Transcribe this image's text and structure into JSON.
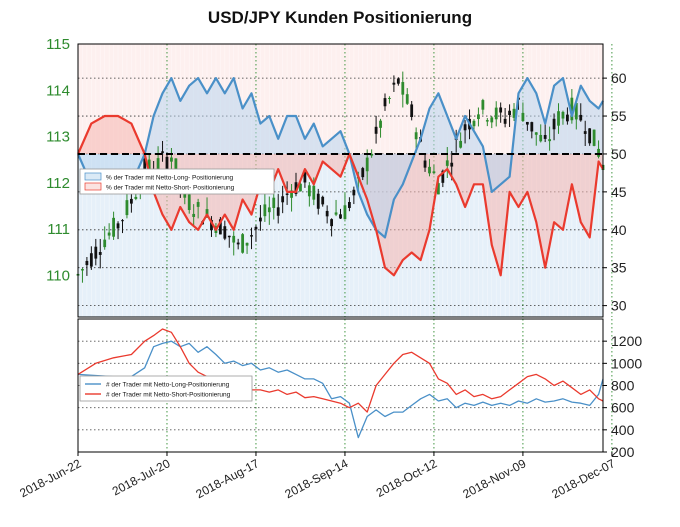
{
  "chart_data": [
    {
      "type": "candlestick+line",
      "title": "USD/JPY Kunden Positionierung",
      "left_axis": {
        "ticks": [
          110,
          111,
          112,
          113,
          114,
          115
        ],
        "ylim": [
          109.1,
          115.0
        ]
      },
      "right_axis": {
        "ticks": [
          30,
          35,
          40,
          45,
          50,
          55,
          60
        ],
        "ylim": [
          28.5,
          64.5
        ]
      },
      "x_tick_labels": [
        "2018-Jun-22",
        "2018-Jul-20",
        "2018-Aug-17",
        "2018-Sep-14",
        "2018-Oct-12",
        "2018-Nov-09",
        "2018-Dec-07"
      ],
      "reference_line": 50,
      "grid": true,
      "legend_position": "upper-left",
      "series": [
        {
          "name": "% der Trader mit Netto-Long- Positionierung",
          "color": "#4a90c8",
          "fill": "#dbeaf6"
        },
        {
          "name": "% der Trader mit Netto-Short- Positionierung",
          "color": "#ea3a2e",
          "fill": "#fbe3e1"
        }
      ],
      "price_anchors": [
        [
          0,
          110.0
        ],
        [
          3,
          110.4
        ],
        [
          6,
          110.8
        ],
        [
          9,
          111.1
        ],
        [
          12,
          111.6
        ],
        [
          15,
          112.3
        ],
        [
          18,
          112.4
        ],
        [
          21,
          112.6
        ],
        [
          24,
          111.7
        ],
        [
          27,
          111.4
        ],
        [
          30,
          111.2
        ],
        [
          33,
          111.0
        ],
        [
          36,
          110.6
        ],
        [
          39,
          110.9
        ],
        [
          42,
          111.3
        ],
        [
          45,
          111.5
        ],
        [
          48,
          111.9
        ],
        [
          51,
          112.0
        ],
        [
          54,
          111.6
        ],
        [
          57,
          111.3
        ],
        [
          60,
          111.4
        ],
        [
          63,
          111.9
        ],
        [
          66,
          112.7
        ],
        [
          69,
          113.6
        ],
        [
          72,
          114.2
        ],
        [
          75,
          113.5
        ],
        [
          78,
          112.5
        ],
        [
          81,
          112.0
        ],
        [
          84,
          112.6
        ],
        [
          87,
          113.2
        ],
        [
          90,
          113.6
        ],
        [
          93,
          113.5
        ],
        [
          96,
          113.4
        ],
        [
          99,
          113.7
        ],
        [
          102,
          113.2
        ],
        [
          105,
          112.8
        ],
        [
          108,
          113.4
        ],
        [
          111,
          113.6
        ],
        [
          114,
          113.3
        ],
        [
          117,
          112.7
        ],
        [
          118,
          112.4
        ]
      ],
      "long_pct": [
        [
          0,
          50
        ],
        [
          3,
          46
        ],
        [
          6,
          45
        ],
        [
          9,
          45
        ],
        [
          12,
          46
        ],
        [
          15,
          50
        ],
        [
          17,
          55
        ],
        [
          19,
          58
        ],
        [
          21,
          60
        ],
        [
          23,
          57
        ],
        [
          25,
          59
        ],
        [
          27,
          60
        ],
        [
          29,
          58
        ],
        [
          31,
          60
        ],
        [
          33,
          58
        ],
        [
          35,
          60
        ],
        [
          37,
          56
        ],
        [
          39,
          58
        ],
        [
          41,
          54
        ],
        [
          43,
          55
        ],
        [
          45,
          52
        ],
        [
          47,
          55
        ],
        [
          49,
          55
        ],
        [
          51,
          52
        ],
        [
          53,
          54
        ],
        [
          55,
          51
        ],
        [
          57,
          52
        ],
        [
          59,
          53
        ],
        [
          61,
          50
        ],
        [
          63,
          45
        ],
        [
          65,
          42
        ],
        [
          67,
          40
        ],
        [
          69,
          39
        ],
        [
          71,
          44
        ],
        [
          73,
          46
        ],
        [
          75,
          49
        ],
        [
          77,
          52
        ],
        [
          79,
          56
        ],
        [
          81,
          58
        ],
        [
          83,
          55
        ],
        [
          85,
          52
        ],
        [
          87,
          55
        ],
        [
          89,
          53
        ],
        [
          91,
          51
        ],
        [
          93,
          45
        ],
        [
          95,
          46
        ],
        [
          97,
          47
        ],
        [
          99,
          58
        ],
        [
          101,
          60
        ],
        [
          103,
          58
        ],
        [
          105,
          54
        ],
        [
          107,
          59
        ],
        [
          109,
          60
        ],
        [
          111,
          55
        ],
        [
          113,
          59
        ],
        [
          115,
          57
        ],
        [
          117,
          56
        ],
        [
          118,
          57
        ]
      ],
      "short_pct": [
        [
          0,
          50
        ],
        [
          3,
          54
        ],
        [
          6,
          55
        ],
        [
          9,
          55
        ],
        [
          12,
          54
        ],
        [
          15,
          50
        ],
        [
          17,
          45
        ],
        [
          19,
          42
        ],
        [
          21,
          40
        ],
        [
          23,
          43
        ],
        [
          25,
          41
        ],
        [
          27,
          40
        ],
        [
          29,
          42
        ],
        [
          31,
          40
        ],
        [
          33,
          42
        ],
        [
          35,
          40
        ],
        [
          37,
          44
        ],
        [
          39,
          42
        ],
        [
          41,
          46
        ],
        [
          43,
          45
        ],
        [
          45,
          48
        ],
        [
          47,
          45
        ],
        [
          49,
          45
        ],
        [
          51,
          48
        ],
        [
          53,
          46
        ],
        [
          55,
          49
        ],
        [
          57,
          48
        ],
        [
          59,
          47
        ],
        [
          61,
          50
        ],
        [
          63,
          47
        ],
        [
          65,
          44
        ],
        [
          67,
          40
        ],
        [
          69,
          35
        ],
        [
          71,
          34
        ],
        [
          73,
          36
        ],
        [
          75,
          37
        ],
        [
          77,
          36
        ],
        [
          79,
          40
        ],
        [
          81,
          47
        ],
        [
          83,
          48
        ],
        [
          85,
          46
        ],
        [
          87,
          43
        ],
        [
          89,
          46
        ],
        [
          91,
          46
        ],
        [
          93,
          38
        ],
        [
          95,
          34
        ],
        [
          97,
          45
        ],
        [
          99,
          43
        ],
        [
          101,
          45
        ],
        [
          103,
          41
        ],
        [
          105,
          35
        ],
        [
          107,
          41
        ],
        [
          109,
          40
        ],
        [
          111,
          46
        ],
        [
          113,
          41
        ],
        [
          115,
          39
        ],
        [
          117,
          49
        ],
        [
          118,
          48
        ]
      ]
    },
    {
      "type": "line",
      "y_ticks": [
        200,
        400,
        600,
        800,
        1000,
        1200
      ],
      "ylim": [
        200,
        1400
      ],
      "grid": true,
      "legend_position": "upper-left",
      "series": [
        {
          "name": "# der Trader mit Netto-Long-Positionierung",
          "color": "#4a90c8",
          "points": [
            [
              0,
              900
            ],
            [
              4,
              890
            ],
            [
              8,
              880
            ],
            [
              12,
              880
            ],
            [
              15,
              960
            ],
            [
              17,
              1150
            ],
            [
              19,
              1180
            ],
            [
              21,
              1200
            ],
            [
              23,
              1150
            ],
            [
              25,
              1180
            ],
            [
              27,
              1100
            ],
            [
              29,
              1150
            ],
            [
              31,
              1080
            ],
            [
              33,
              1000
            ],
            [
              35,
              1020
            ],
            [
              37,
              980
            ],
            [
              39,
              1000
            ],
            [
              41,
              940
            ],
            [
              43,
              960
            ],
            [
              45,
              920
            ],
            [
              47,
              940
            ],
            [
              49,
              900
            ],
            [
              51,
              860
            ],
            [
              53,
              860
            ],
            [
              55,
              820
            ],
            [
              57,
              680
            ],
            [
              59,
              700
            ],
            [
              61,
              640
            ],
            [
              63,
              330
            ],
            [
              65,
              520
            ],
            [
              67,
              580
            ],
            [
              69,
              520
            ],
            [
              71,
              560
            ],
            [
              73,
              560
            ],
            [
              75,
              620
            ],
            [
              77,
              680
            ],
            [
              79,
              720
            ],
            [
              81,
              660
            ],
            [
              83,
              680
            ],
            [
              85,
              600
            ],
            [
              87,
              640
            ],
            [
              89,
              620
            ],
            [
              91,
              650
            ],
            [
              93,
              620
            ],
            [
              95,
              640
            ],
            [
              97,
              620
            ],
            [
              99,
              660
            ],
            [
              101,
              640
            ],
            [
              103,
              680
            ],
            [
              105,
              650
            ],
            [
              107,
              660
            ],
            [
              109,
              680
            ],
            [
              111,
              650
            ],
            [
              113,
              640
            ],
            [
              115,
              620
            ],
            [
              117,
              720
            ],
            [
              118,
              860
            ]
          ]
        },
        {
          "name": "# der Trader mit Netto-Short-Positionierung",
          "color": "#ea3a2e",
          "points": [
            [
              0,
              900
            ],
            [
              4,
              1000
            ],
            [
              8,
              1050
            ],
            [
              12,
              1080
            ],
            [
              15,
              1200
            ],
            [
              17,
              1250
            ],
            [
              19,
              1310
            ],
            [
              21,
              1280
            ],
            [
              23,
              1150
            ],
            [
              25,
              1000
            ],
            [
              27,
              920
            ],
            [
              29,
              880
            ],
            [
              31,
              840
            ],
            [
              33,
              820
            ],
            [
              35,
              760
            ],
            [
              37,
              780
            ],
            [
              39,
              760
            ],
            [
              41,
              760
            ],
            [
              43,
              740
            ],
            [
              45,
              760
            ],
            [
              47,
              720
            ],
            [
              49,
              740
            ],
            [
              51,
              690
            ],
            [
              53,
              700
            ],
            [
              55,
              680
            ],
            [
              57,
              660
            ],
            [
              59,
              640
            ],
            [
              61,
              600
            ],
            [
              63,
              640
            ],
            [
              65,
              560
            ],
            [
              67,
              800
            ],
            [
              69,
              900
            ],
            [
              71,
              1000
            ],
            [
              73,
              1080
            ],
            [
              75,
              1100
            ],
            [
              77,
              1050
            ],
            [
              79,
              1000
            ],
            [
              81,
              860
            ],
            [
              83,
              820
            ],
            [
              85,
              720
            ],
            [
              87,
              760
            ],
            [
              89,
              700
            ],
            [
              91,
              720
            ],
            [
              93,
              680
            ],
            [
              95,
              700
            ],
            [
              97,
              760
            ],
            [
              99,
              820
            ],
            [
              101,
              880
            ],
            [
              103,
              900
            ],
            [
              105,
              860
            ],
            [
              107,
              800
            ],
            [
              109,
              840
            ],
            [
              111,
              780
            ],
            [
              113,
              720
            ],
            [
              115,
              760
            ],
            [
              117,
              680
            ],
            [
              118,
              660
            ]
          ]
        }
      ]
    }
  ]
}
